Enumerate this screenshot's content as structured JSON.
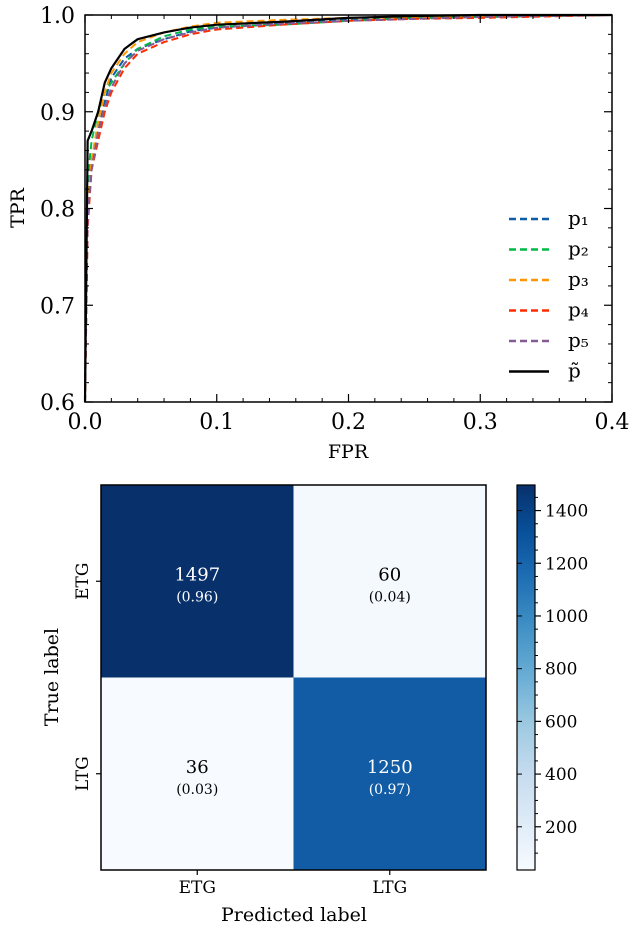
{
  "chart_data": [
    {
      "type": "line",
      "xlabel": "FPR",
      "ylabel": "TPR",
      "xlim": [
        0.0,
        0.4
      ],
      "ylim": [
        0.6,
        1.0
      ],
      "xticks": [
        "0.0",
        "0.1",
        "0.2",
        "0.3",
        "0.4"
      ],
      "yticks": [
        "0.6",
        "0.7",
        "0.8",
        "0.9",
        "1.0"
      ],
      "grid": false,
      "legend_position": "bottom-right",
      "series": [
        {
          "name": "p₁",
          "style": "dashed",
          "color": "#0C5DA5",
          "x": [
            0.0,
            0.002,
            0.005,
            0.01,
            0.015,
            0.02,
            0.03,
            0.04,
            0.06,
            0.08,
            0.1,
            0.15,
            0.2,
            0.25,
            0.3,
            0.4
          ],
          "y": [
            0.6,
            0.81,
            0.85,
            0.88,
            0.91,
            0.935,
            0.955,
            0.965,
            0.975,
            0.983,
            0.987,
            0.991,
            0.995,
            0.997,
            0.998,
            1.0
          ]
        },
        {
          "name": "p₂",
          "style": "dashed",
          "color": "#00B945",
          "x": [
            0.0,
            0.002,
            0.005,
            0.01,
            0.015,
            0.02,
            0.03,
            0.04,
            0.06,
            0.08,
            0.1,
            0.15,
            0.2,
            0.25,
            0.3,
            0.4
          ],
          "y": [
            0.6,
            0.83,
            0.87,
            0.9,
            0.92,
            0.93,
            0.95,
            0.965,
            0.978,
            0.985,
            0.988,
            0.99,
            0.994,
            0.997,
            0.998,
            1.0
          ]
        },
        {
          "name": "p₃",
          "style": "dashed",
          "color": "#FF9500",
          "x": [
            0.0,
            0.002,
            0.005,
            0.01,
            0.015,
            0.02,
            0.03,
            0.04,
            0.06,
            0.08,
            0.1,
            0.15,
            0.2,
            0.25,
            0.3,
            0.4
          ],
          "y": [
            0.6,
            0.8,
            0.85,
            0.89,
            0.92,
            0.94,
            0.96,
            0.972,
            0.982,
            0.988,
            0.992,
            0.995,
            0.997,
            0.998,
            0.999,
            1.0
          ]
        },
        {
          "name": "p₄",
          "style": "dashed",
          "color": "#FF2C00",
          "x": [
            0.0,
            0.002,
            0.005,
            0.01,
            0.015,
            0.02,
            0.03,
            0.04,
            0.06,
            0.08,
            0.1,
            0.15,
            0.2,
            0.25,
            0.3,
            0.4
          ],
          "y": [
            0.6,
            0.78,
            0.84,
            0.87,
            0.9,
            0.92,
            0.945,
            0.96,
            0.972,
            0.98,
            0.985,
            0.99,
            0.994,
            0.996,
            0.997,
            1.0
          ]
        },
        {
          "name": "p₅",
          "style": "dashed",
          "color": "#845B97",
          "x": [
            0.0,
            0.002,
            0.005,
            0.01,
            0.015,
            0.02,
            0.03,
            0.04,
            0.06,
            0.08,
            0.1,
            0.15,
            0.2,
            0.25,
            0.3,
            0.4
          ],
          "y": [
            0.6,
            0.79,
            0.84,
            0.88,
            0.905,
            0.925,
            0.95,
            0.963,
            0.975,
            0.982,
            0.987,
            0.991,
            0.994,
            0.996,
            0.998,
            1.0
          ]
        },
        {
          "name": "p̃",
          "style": "solid",
          "color": "#000000",
          "x": [
            0.0,
            0.002,
            0.005,
            0.01,
            0.015,
            0.02,
            0.03,
            0.04,
            0.06,
            0.08,
            0.1,
            0.15,
            0.2,
            0.25,
            0.3,
            0.4
          ],
          "y": [
            0.6,
            0.87,
            0.88,
            0.9,
            0.93,
            0.945,
            0.965,
            0.975,
            0.982,
            0.987,
            0.99,
            0.993,
            0.997,
            0.999,
            1.0,
            1.0
          ]
        }
      ]
    },
    {
      "type": "heatmap",
      "xlabel": "Predicted label",
      "ylabel": "True label",
      "categories": [
        "ETG",
        "LTG"
      ],
      "values": [
        [
          1497,
          60
        ],
        [
          36,
          1250
        ]
      ],
      "fractions": [
        [
          "(0.96)",
          "(0.04)"
        ],
        [
          "(0.03)",
          "(0.97)"
        ]
      ],
      "colormap": "Blues",
      "color_low": "#f7fbff",
      "color_high": "#08306b",
      "vmin": 36,
      "vmax": 1497,
      "colorbar_ticks": [
        200,
        400,
        600,
        800,
        1000,
        1200,
        1400
      ]
    }
  ]
}
